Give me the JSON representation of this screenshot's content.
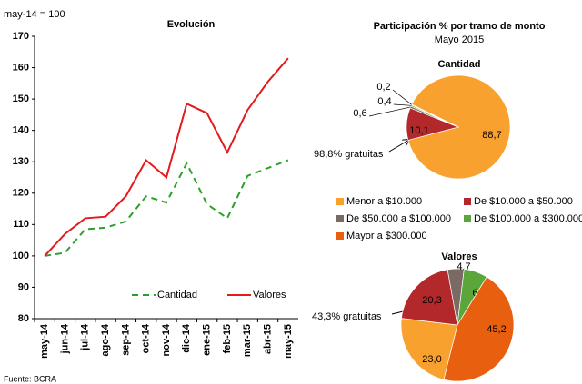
{
  "chart_data": [
    {
      "type": "line",
      "title": "Evolución",
      "y_note": "may-14 = 100",
      "source": "Fuente: BCRA",
      "categories": [
        "may-14",
        "jun-14",
        "jul-14",
        "ago-14",
        "sep-14",
        "oct-14",
        "nov-14",
        "dic-14",
        "ene-15",
        "feb-15",
        "mar-15",
        "abr-15",
        "may-15"
      ],
      "series": [
        {
          "name": "Cantidad",
          "color": "#2ca02c",
          "dashed": true,
          "values": [
            100,
            101,
            108.5,
            109,
            111,
            119,
            117,
            129.5,
            116.5,
            112,
            125.5,
            128,
            130.5
          ]
        },
        {
          "name": "Valores",
          "color": "#e41a1c",
          "dashed": false,
          "values": [
            100,
            107,
            112,
            112.5,
            119,
            130.5,
            125,
            148.5,
            145.5,
            133,
            146.5,
            155.5,
            163
          ]
        }
      ],
      "ylim": [
        80,
        170
      ],
      "yticks": [
        80,
        90,
        100,
        110,
        120,
        130,
        140,
        150,
        160,
        170
      ]
    },
    {
      "type": "pie",
      "panel_title": "Participación % por tramo de monto",
      "panel_subtitle": "Mayo 2015",
      "title": "Cantidad",
      "categories": [
        "Menor a $10.000",
        "De $10.000 a $50.000",
        "De $50.000 a $100.000",
        "De $100.000 a $300.000",
        "Mayor a $300.000"
      ],
      "colors": [
        "#f9a12f",
        "#b3282a",
        "#7a6a63",
        "#5ba63b",
        "#e8600f"
      ],
      "values": [
        88.7,
        10.1,
        0.6,
        0.4,
        0.2
      ],
      "value_labels": [
        "88,7",
        "10,1",
        "0,6",
        "0,4",
        "0,2"
      ],
      "annotation": "98,8% gratuitas"
    },
    {
      "type": "pie",
      "title": "Valores",
      "categories": [
        "Menor a $10.000",
        "De $10.000 a $50.000",
        "De $50.000 a $100.000",
        "De $100.000 a $300.000",
        "Mayor a $300.000"
      ],
      "colors": [
        "#f9a12f",
        "#b3282a",
        "#7a6a63",
        "#5ba63b",
        "#e8600f"
      ],
      "values": [
        23.0,
        20.3,
        4.7,
        6.8,
        45.2
      ],
      "value_labels": [
        "23,0",
        "20,3",
        "4,7",
        "6,8",
        "45,2"
      ],
      "annotation": "43,3% gratuitas"
    }
  ]
}
